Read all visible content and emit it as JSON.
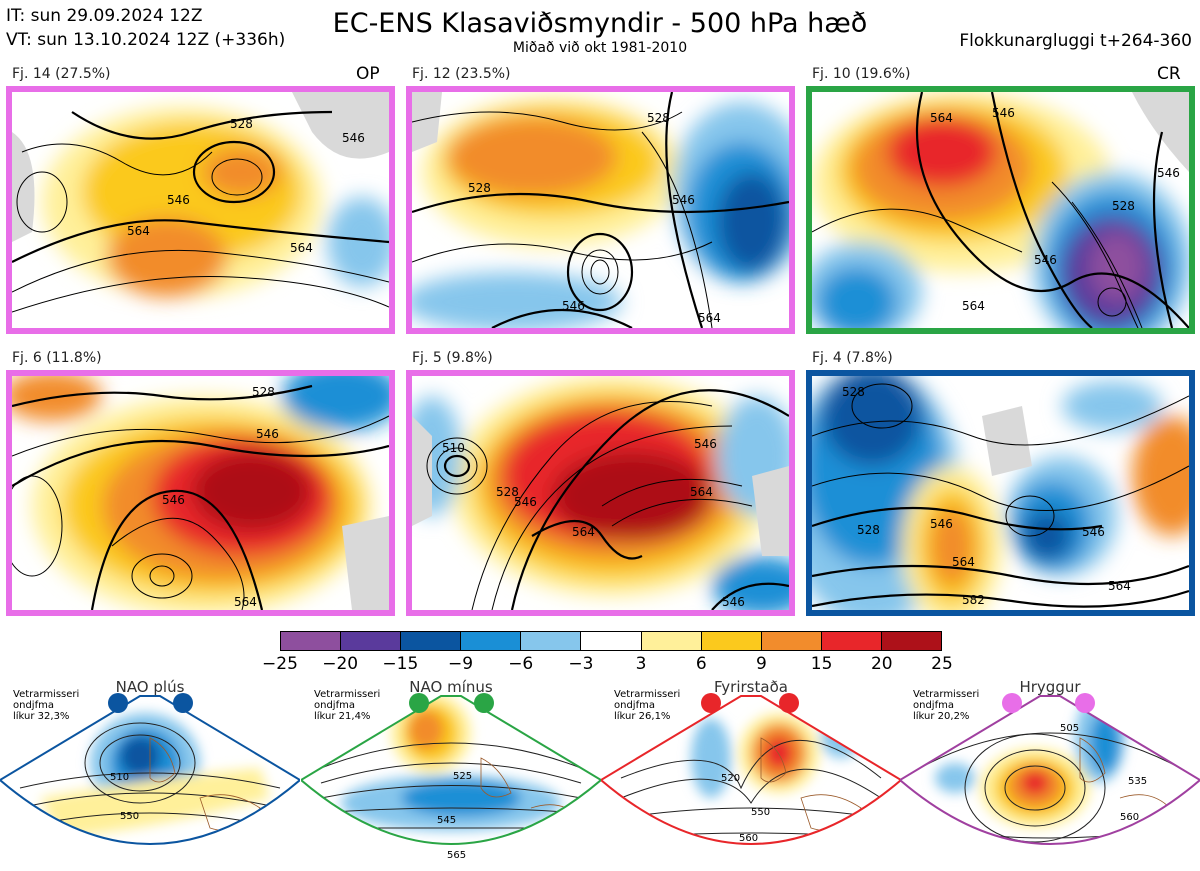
{
  "header": {
    "it": "IT: sun 29.09.2024 12Z",
    "vt": "VT: sun 13.10.2024 12Z  (+336h)",
    "title": "EC-ENS Klasaviðsmyndir - 500 hPa hæð",
    "subtitle": "Miðað við okt 1981-2010",
    "window": "Flokkunargluggi t+264-360"
  },
  "colors": {
    "nao_plus": "#0b55a0",
    "nao_minus": "#2aa545",
    "blocking": "#e8262a",
    "ridge": "#e86ee8"
  },
  "panels": [
    {
      "label": "Fj. 14 (27.5%)",
      "tag": "OP",
      "regime": "ridge",
      "border": "#e86ee8"
    },
    {
      "label": "Fj. 12 (23.5%)",
      "tag": "",
      "regime": "ridge",
      "border": "#e86ee8"
    },
    {
      "label": "Fj. 10 (19.6%)",
      "tag": "CR",
      "regime": "nao_minus",
      "border": "#2aa545"
    },
    {
      "label": "Fj. 6 (11.8%)",
      "tag": "",
      "regime": "ridge",
      "border": "#e86ee8"
    },
    {
      "label": "Fj. 5 (9.8%)",
      "tag": "",
      "regime": "ridge",
      "border": "#e86ee8"
    },
    {
      "label": "Fj. 4 (7.8%)",
      "tag": "",
      "regime": "nao_plus",
      "border": "#0b55a0"
    }
  ],
  "contour_labels": {
    "p0": [
      "528",
      "546",
      "564",
      "564",
      "546"
    ],
    "p1": [
      "528",
      "528",
      "546",
      "546",
      "564"
    ],
    "p2": [
      "564",
      "546",
      "528",
      "546",
      "564",
      "546"
    ],
    "p3": [
      "528",
      "546",
      "546",
      "564"
    ],
    "p4": [
      "510",
      "528",
      "546",
      "546",
      "564",
      "564",
      "546"
    ],
    "p5": [
      "528",
      "528",
      "546",
      "546",
      "564",
      "582",
      "564"
    ]
  },
  "colorbar": {
    "ticks": [
      "−25",
      "−20",
      "−15",
      "−9",
      "−6",
      "−3",
      "3",
      "6",
      "9",
      "15",
      "20",
      "25"
    ],
    "colors": [
      "#8e4f9e",
      "#5a3a9c",
      "#0b55a0",
      "#1a8fd6",
      "#86c6ec",
      "#ffffff",
      "#fff09a",
      "#fbc91d",
      "#f28c2c",
      "#e8262a",
      "#ad1119"
    ]
  },
  "regimes": [
    {
      "name": "NAO plús",
      "note": "Vetrarmisseri\nondjfma\nlíkur 32,3%",
      "color": "#0b55a0",
      "labels": [
        "510",
        "550"
      ]
    },
    {
      "name": "NAO mínus",
      "note": "Vetrarmisseri\nondjfma\nlíkur 21,4%",
      "color": "#2aa545",
      "labels": [
        "525",
        "545",
        "565"
      ]
    },
    {
      "name": "Fyrirstaða",
      "note": "Vetrarmisseri\nondjfma\nlíkur 26,1%",
      "color": "#e8262a",
      "labels": [
        "520",
        "550",
        "560"
      ]
    },
    {
      "name": "Hryggur",
      "note": "Vetrarmisseri\nondjfma\nlíkur 20,2%",
      "color": "#a040a0",
      "labels": [
        "505",
        "535",
        "560"
      ]
    }
  ]
}
